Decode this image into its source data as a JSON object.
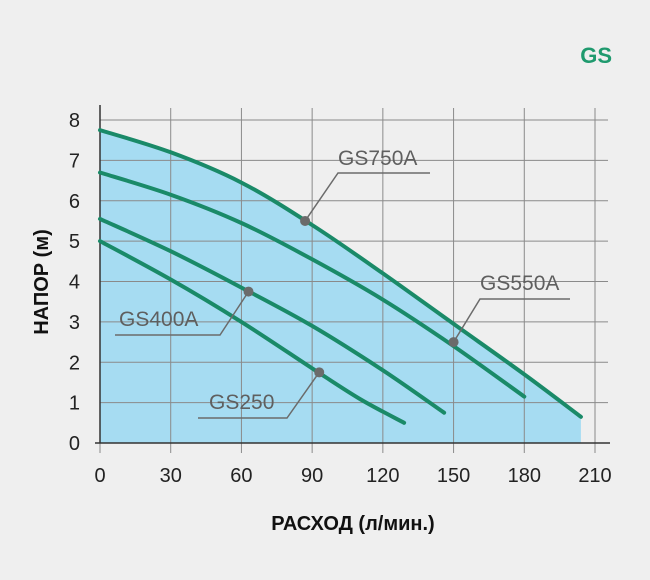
{
  "brand": "GS",
  "colors": {
    "background": "#efefef",
    "fill": "#a6dcf2",
    "curve": "#1a8a68",
    "brand": "#1f9a6e",
    "grid": "#8a8a8a",
    "marker": "#6b6b6b",
    "label": "#5f5f5f"
  },
  "chart_data": {
    "type": "line",
    "title": "",
    "xlabel": "РАСХОД (л/мин.)",
    "ylabel": "НАПОР (м)",
    "xlim": [
      0,
      210
    ],
    "ylim": [
      0,
      8
    ],
    "xticks": [
      "0",
      "30",
      "60",
      "90",
      "120",
      "150",
      "180",
      "210"
    ],
    "yticks": [
      "0",
      "1",
      "2",
      "3",
      "4",
      "5",
      "6",
      "7",
      "8"
    ],
    "grid": true,
    "series": [
      {
        "name": "GS750A",
        "x": [
          0,
          30,
          60,
          90,
          120,
          150,
          180,
          204
        ],
        "y": [
          7.75,
          7.2,
          6.45,
          5.4,
          4.2,
          2.95,
          1.7,
          0.65
        ],
        "marker": [
          87,
          5.5
        ]
      },
      {
        "name": "GS550A",
        "x": [
          0,
          30,
          60,
          90,
          120,
          150,
          180
        ],
        "y": [
          6.7,
          6.15,
          5.45,
          4.55,
          3.55,
          2.4,
          1.15
        ],
        "marker": [
          150,
          2.5
        ]
      },
      {
        "name": "GS400A",
        "x": [
          0,
          30,
          60,
          90,
          120,
          146
        ],
        "y": [
          5.55,
          4.75,
          3.85,
          2.9,
          1.8,
          0.75
        ],
        "marker": [
          63,
          3.75
        ]
      },
      {
        "name": "GS250",
        "x": [
          0,
          30,
          60,
          90,
          110,
          129
        ],
        "y": [
          5.0,
          4.05,
          3.0,
          1.85,
          1.1,
          0.5
        ],
        "marker": [
          93,
          1.75
        ]
      }
    ]
  }
}
